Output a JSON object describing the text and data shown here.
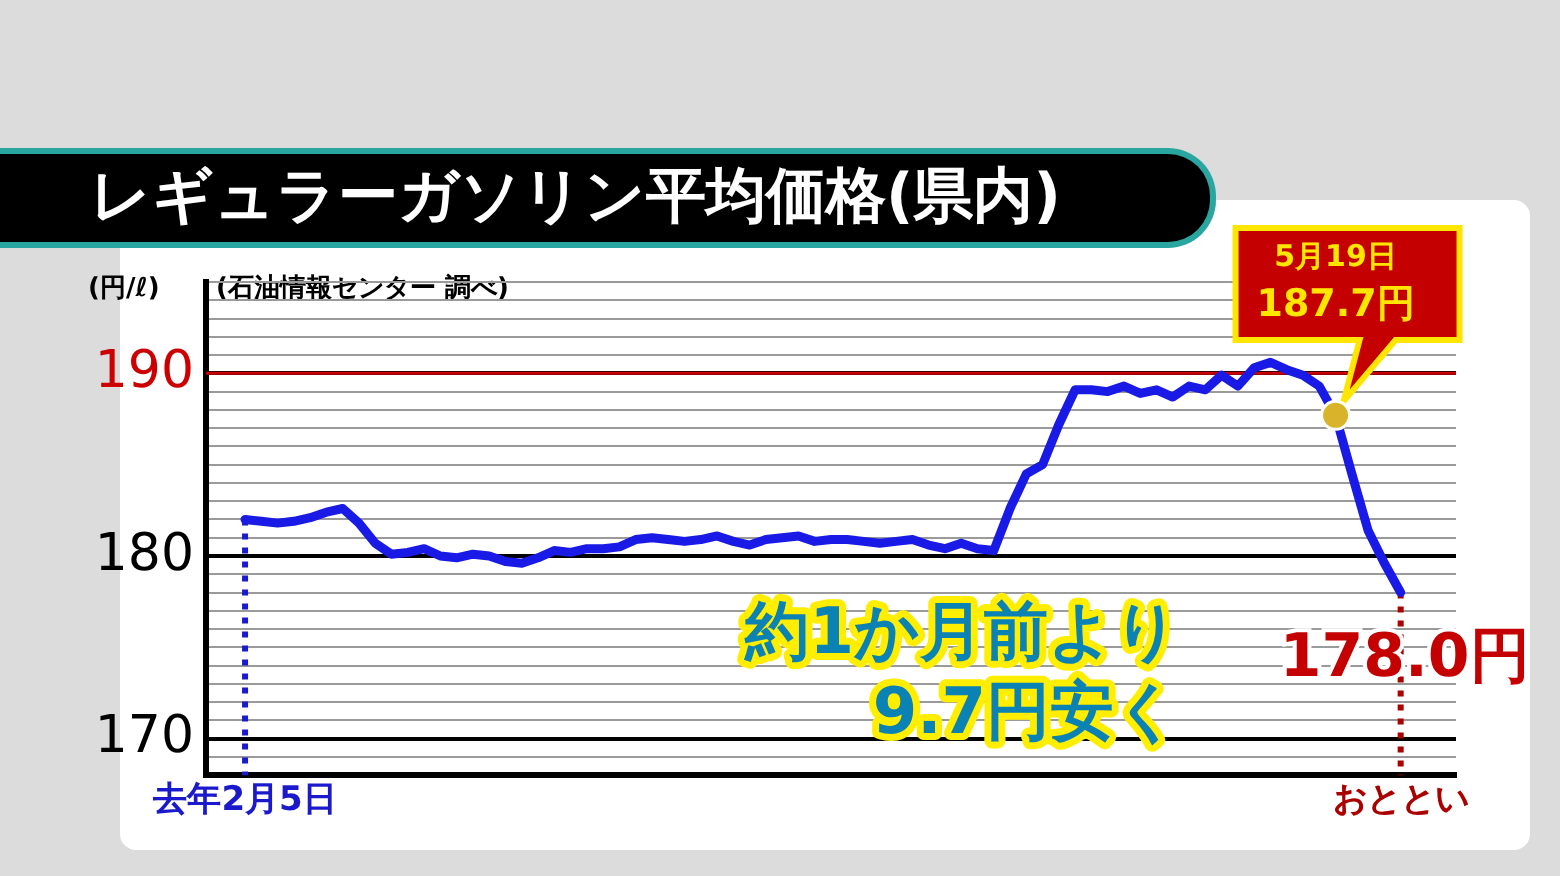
{
  "chart_data": {
    "type": "line",
    "title": "レギュラーガソリン平均価格(県内)",
    "ylabel": "(円/ℓ)",
    "categories": [
      "去年2月5日",
      null,
      null,
      null,
      null,
      null,
      null,
      null,
      null,
      null,
      null,
      null,
      null,
      null,
      null,
      null,
      null,
      null,
      null,
      null,
      null,
      null,
      null,
      null,
      null,
      null,
      null,
      null,
      null,
      null,
      null,
      null,
      null,
      null,
      null,
      null,
      null,
      null,
      null,
      null,
      null,
      null,
      null,
      null,
      null,
      null,
      null,
      null,
      null,
      null,
      null,
      null,
      null,
      null,
      null,
      null,
      null,
      null,
      null,
      null,
      null,
      null,
      null,
      null,
      null,
      null,
      null,
      null,
      null,
      null,
      null,
      "おととい"
    ],
    "series": [
      {
        "color": "#1a1ae6",
        "values": [
          182.0,
          181.9,
          181.8,
          181.9,
          182.1,
          182.4,
          182.6,
          181.8,
          180.7,
          180.1,
          180.2,
          180.4,
          180.0,
          179.9,
          180.1,
          180.0,
          179.7,
          179.6,
          179.9,
          180.3,
          180.2,
          180.4,
          180.4,
          180.5,
          180.9,
          181.0,
          180.9,
          180.8,
          180.9,
          181.1,
          180.8,
          180.6,
          180.9,
          181.0,
          181.1,
          180.8,
          180.9,
          180.9,
          180.8,
          180.7,
          180.8,
          180.9,
          180.6,
          180.4,
          180.7,
          180.4,
          180.3,
          182.6,
          184.5,
          185.0,
          187.2,
          189.1,
          189.1,
          189.0,
          189.3,
          188.9,
          189.1,
          188.7,
          189.3,
          189.1,
          189.9,
          189.3,
          190.3,
          190.6,
          190.2,
          189.9,
          189.3,
          187.7,
          184.5,
          181.4,
          179.6,
          178.0
        ]
      }
    ],
    "ylim": [
      168,
      195
    ],
    "yticks": [
      {
        "value": 168,
        "label": null
      },
      {
        "value": 169,
        "label": null
      },
      170,
      {
        "value": 171,
        "label": null
      },
      {
        "value": 172,
        "label": null
      },
      {
        "value": 173,
        "label": null
      },
      {
        "value": 174,
        "label": null
      },
      {
        "value": 175,
        "label": null
      },
      {
        "value": 176,
        "label": null
      },
      {
        "value": 177,
        "label": null
      },
      {
        "value": 178,
        "label": null
      },
      {
        "value": 179,
        "label": null
      },
      180,
      {
        "value": 181,
        "label": null
      },
      {
        "value": 182,
        "label": null
      },
      {
        "value": 183,
        "label": null
      },
      {
        "value": 184,
        "label": null
      },
      {
        "value": 185,
        "label": null
      },
      {
        "value": 186,
        "label": null
      },
      {
        "value": 187,
        "label": null
      },
      {
        "value": 188,
        "label": null
      },
      {
        "value": 189,
        "label": null
      },
      190,
      {
        "value": 191,
        "label": null
      },
      {
        "value": 192,
        "label": null
      },
      {
        "value": 193,
        "label": null
      },
      {
        "value": 194,
        "label": null
      },
      {
        "value": 195,
        "label": null
      }
    ],
    "grid": "y",
    "marker": "none",
    "legend": false,
    "ref_lines": [
      {
        "axis": "y",
        "value": 190,
        "color": "#cc0000",
        "line_style": "solid"
      },
      {
        "axis": "x",
        "value": "去年2月5日",
        "color": "#1a1acc",
        "line_style": "dotted"
      },
      {
        "axis": "x",
        "value": "おととい",
        "color": "#aa0000",
        "line_style": "dotted"
      }
    ],
    "annotations": [
      {
        "text": "5月19日\n187.7円",
        "y": 187.7
      },
      {
        "text": "178.0円",
        "y": 178.0
      },
      "約1か月前より\n9.7円安く",
      "(石油情報センター 調べ)"
    ]
  }
}
